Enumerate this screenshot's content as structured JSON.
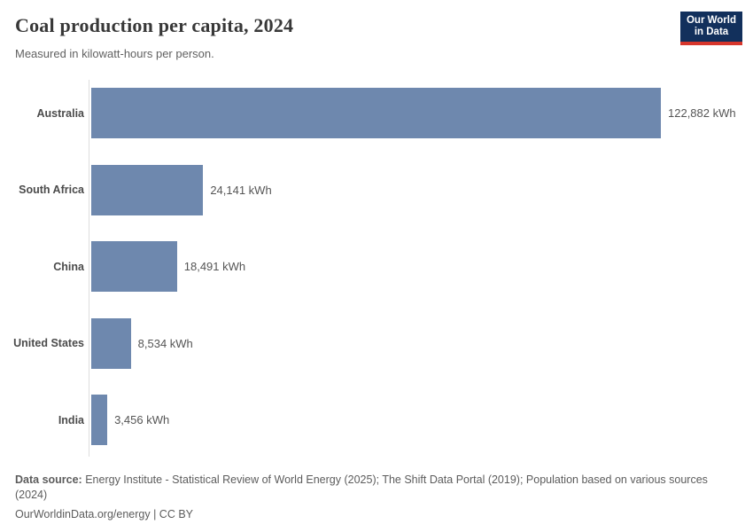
{
  "header": {
    "title": "Coal production per capita, 2024",
    "subtitle": "Measured in kilowatt-hours per person."
  },
  "logo": {
    "line1": "Our World",
    "line2": "in Data",
    "bg_color": "#12305c",
    "accent_color": "#d7362c"
  },
  "chart_data": {
    "type": "bar",
    "orientation": "horizontal",
    "title": "Coal production per capita, 2024",
    "subtitle": "Measured in kilowatt-hours per person.",
    "unit": "kWh",
    "categories": [
      "Australia",
      "South Africa",
      "China",
      "United States",
      "India"
    ],
    "values": [
      122882,
      24141,
      18491,
      8534,
      3456
    ],
    "value_labels": [
      "122,882 kWh",
      "24,141 kWh",
      "18,491 kWh",
      "8,534 kWh",
      "3,456 kWh"
    ],
    "xlim": [
      0,
      122882
    ],
    "grid": false,
    "legend": false,
    "bar_color": "#6e88ae",
    "axis_color": "#dedede",
    "label_color": "#4b4b4b",
    "value_color": "#555555"
  },
  "footer": {
    "data_source_label": "Data source:",
    "data_source_text": "Energy Institute - Statistical Review of World Energy (2025); The Shift Data Portal (2019); Population based on various sources (2024)",
    "credit": "OurWorldinData.org/energy | CC BY"
  }
}
